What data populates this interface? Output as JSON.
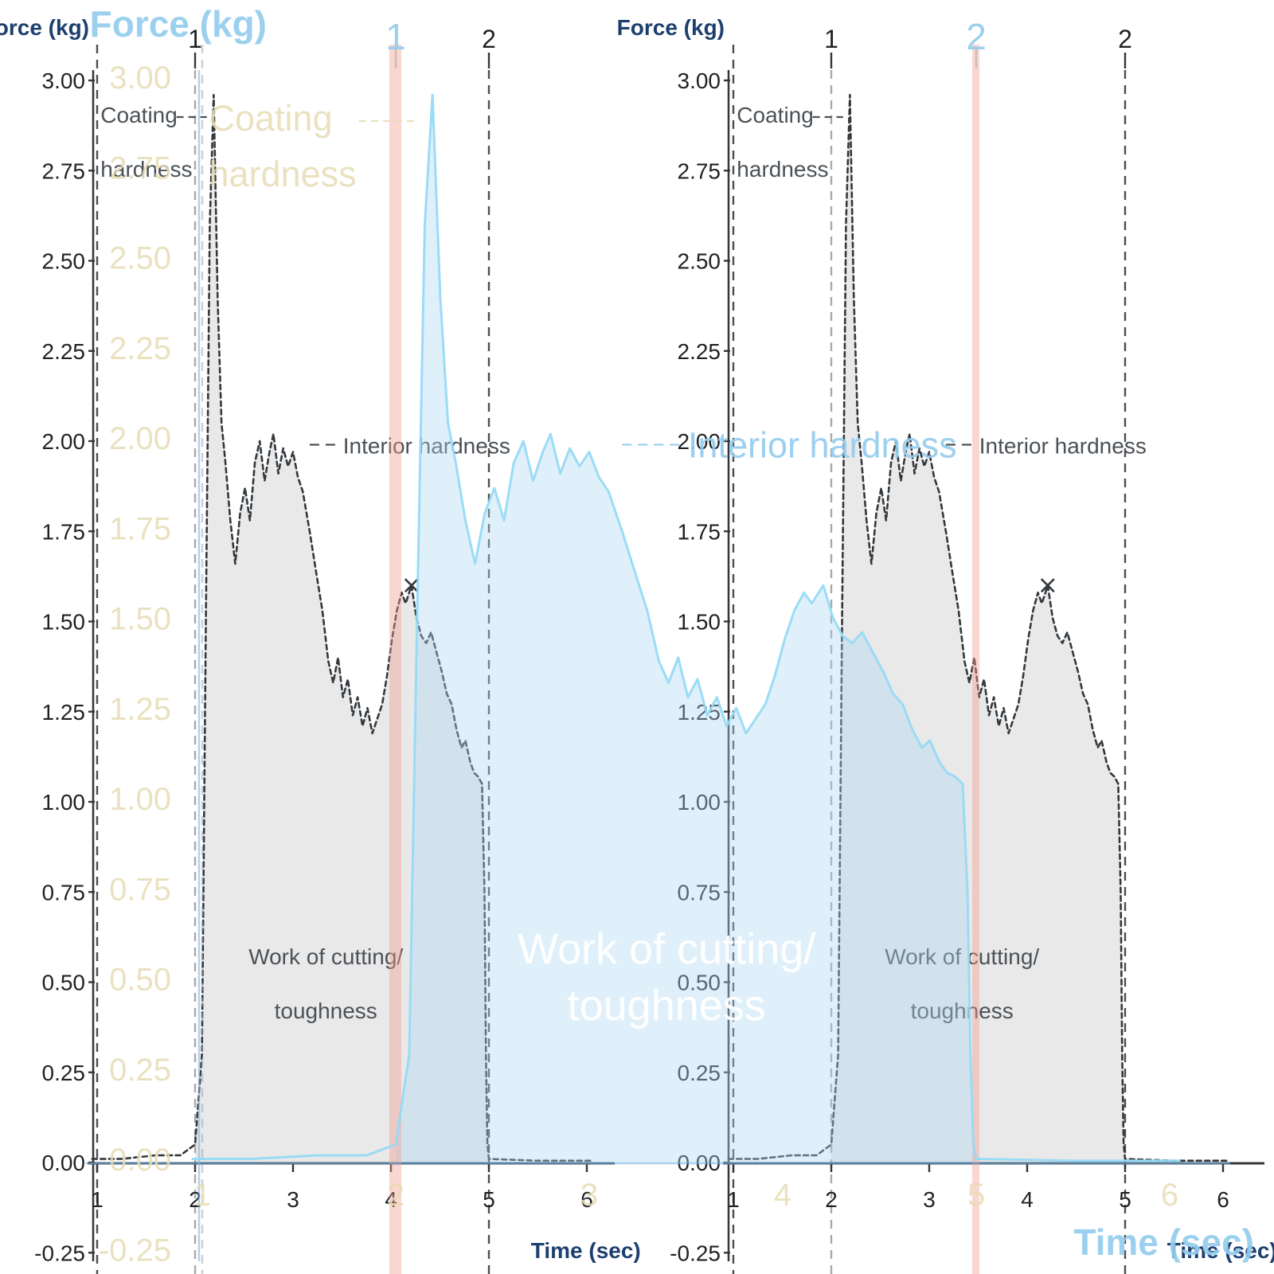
{
  "chart_data": {
    "type": "area",
    "title": "",
    "xlabel": "Time (sec)",
    "ylabel": "Force (kg)",
    "xlim": [
      0.95,
      6.1
    ],
    "ylim": [
      -0.25,
      3.0
    ],
    "grid": false,
    "x_ticks": [
      "1",
      "2",
      "3",
      "4",
      "5",
      "6"
    ],
    "y_ticks": [
      "3.00",
      "2.75",
      "2.50",
      "2.25",
      "2.00",
      "1.75",
      "1.50",
      "1.25",
      "1.00",
      "0.75",
      "0.50",
      "0.25",
      "0.00",
      "-0.25"
    ],
    "top_axis_ticks": [
      {
        "label": "1",
        "t": 2.0
      },
      {
        "label": "2",
        "t": 5.0
      }
    ],
    "event_lines_t": [
      1.0,
      2.0,
      5.0
    ],
    "shaded_region_t": [
      2.0,
      5.0
    ],
    "annotations": {
      "coating": {
        "lines": [
          "Coating",
          "hardness"
        ],
        "points_to_t": 2.12
      },
      "interior": {
        "text": "Interior hardness",
        "level_force": 1.99
      },
      "work": {
        "lines": [
          "Work of cutting/",
          "toughness"
        ]
      }
    },
    "cross_marker": {
      "t": 4.21,
      "force": 1.6
    },
    "series": [
      {
        "name": "Force",
        "points": [
          [
            0.95,
            0.01
          ],
          [
            1.25,
            0.01
          ],
          [
            1.6,
            0.02
          ],
          [
            1.85,
            0.02
          ],
          [
            2.0,
            0.05
          ],
          [
            2.07,
            0.3
          ],
          [
            2.11,
            1.5
          ],
          [
            2.15,
            2.6
          ],
          [
            2.19,
            2.96
          ],
          [
            2.23,
            2.4
          ],
          [
            2.27,
            2.05
          ],
          [
            2.31,
            1.94
          ],
          [
            2.36,
            1.78
          ],
          [
            2.41,
            1.66
          ],
          [
            2.46,
            1.8
          ],
          [
            2.51,
            1.87
          ],
          [
            2.56,
            1.78
          ],
          [
            2.61,
            1.94
          ],
          [
            2.66,
            2.0
          ],
          [
            2.71,
            1.89
          ],
          [
            2.76,
            1.97
          ],
          [
            2.8,
            2.02
          ],
          [
            2.85,
            1.91
          ],
          [
            2.9,
            1.98
          ],
          [
            2.95,
            1.93
          ],
          [
            3.0,
            1.97
          ],
          [
            3.05,
            1.9
          ],
          [
            3.1,
            1.86
          ],
          [
            3.17,
            1.75
          ],
          [
            3.24,
            1.63
          ],
          [
            3.3,
            1.53
          ],
          [
            3.36,
            1.39
          ],
          [
            3.41,
            1.33
          ],
          [
            3.46,
            1.4
          ],
          [
            3.51,
            1.29
          ],
          [
            3.56,
            1.34
          ],
          [
            3.61,
            1.24
          ],
          [
            3.66,
            1.29
          ],
          [
            3.71,
            1.21
          ],
          [
            3.76,
            1.26
          ],
          [
            3.81,
            1.19
          ],
          [
            3.86,
            1.23
          ],
          [
            3.91,
            1.27
          ],
          [
            3.96,
            1.35
          ],
          [
            4.01,
            1.45
          ],
          [
            4.06,
            1.53
          ],
          [
            4.11,
            1.58
          ],
          [
            4.15,
            1.55
          ],
          [
            4.21,
            1.6
          ],
          [
            4.26,
            1.51
          ],
          [
            4.31,
            1.46
          ],
          [
            4.36,
            1.44
          ],
          [
            4.41,
            1.47
          ],
          [
            4.46,
            1.42
          ],
          [
            4.52,
            1.36
          ],
          [
            4.57,
            1.3
          ],
          [
            4.62,
            1.27
          ],
          [
            4.67,
            1.2
          ],
          [
            4.72,
            1.15
          ],
          [
            4.76,
            1.17
          ],
          [
            4.81,
            1.11
          ],
          [
            4.85,
            1.08
          ],
          [
            4.89,
            1.07
          ],
          [
            4.93,
            1.05
          ],
          [
            4.955,
            0.75
          ],
          [
            4.97,
            0.3
          ],
          [
            4.985,
            0.05
          ],
          [
            5.0,
            0.01
          ],
          [
            5.5,
            0.005
          ],
          [
            6.05,
            0.005
          ]
        ]
      }
    ],
    "legend": null
  },
  "colors": {
    "background": "#ffffff",
    "axis": "#33373b",
    "tick_label": "#1f2224",
    "axis_title_navy": "#1d3f6e",
    "annotation_gray": "#4b5157",
    "curve_dark": "#33383d",
    "area_gray": "#e9e9e9",
    "event_line_dark": "#4d4d4d",
    "event_line_mid": "#a9a9a9",
    "ghost_curve": "rgba(150,218,246,0.95)",
    "ghost_fill": "rgba(173,216,243,0.38)",
    "ghost_baseline": "rgba(120,180,230,0.6)",
    "ghost_text_blue": "rgba(148,204,238,0.92)",
    "ghost_text_yellow": "rgba(230,220,180,0.85)",
    "ghost_text_white": "rgba(255,255,255,0.95)",
    "ghost_event_line": "rgba(165,165,165,0.55)",
    "ghost_marker_pink": "rgba(243,158,146,0.42)"
  }
}
